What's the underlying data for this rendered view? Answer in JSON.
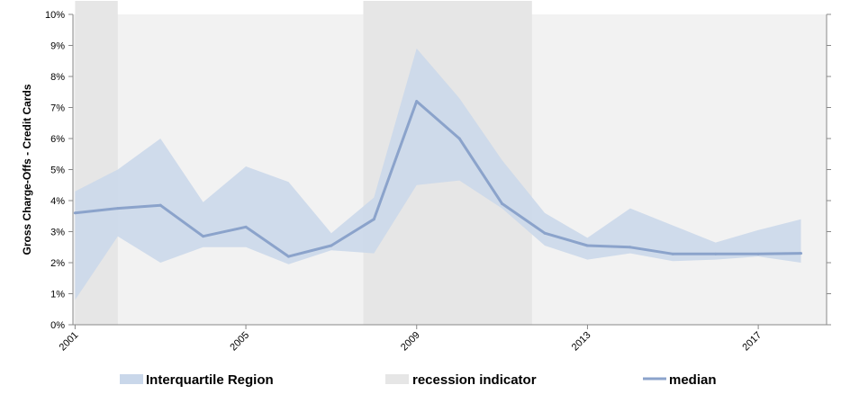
{
  "chart_data": {
    "type": "area",
    "ylabel": "Gross Charge-Offs - Credit Cards",
    "xlabel": "",
    "y_ticks": [
      "0%",
      "1%",
      "2%",
      "3%",
      "4%",
      "5%",
      "6%",
      "7%",
      "8%",
      "9%",
      "10%"
    ],
    "ylim": [
      0,
      10
    ],
    "x_ticks": [
      "2001",
      "2005",
      "2009",
      "2013",
      "2017"
    ],
    "xlim": [
      2000.95,
      2018.6
    ],
    "x": [
      2001,
      2002,
      2003,
      2004,
      2005,
      2006,
      2007,
      2008,
      2009,
      2010,
      2011,
      2012,
      2013,
      2014,
      2015,
      2016,
      2017,
      2018
    ],
    "series": [
      {
        "name": "median",
        "values": [
          3.6,
          3.75,
          3.85,
          2.85,
          3.15,
          2.2,
          2.55,
          3.4,
          7.2,
          6.0,
          3.9,
          2.95,
          2.55,
          2.5,
          2.28,
          2.28,
          2.28,
          2.3
        ]
      },
      {
        "name": "Interquartile Region",
        "upper": [
          4.3,
          5.0,
          6.0,
          3.95,
          5.1,
          4.6,
          2.95,
          4.1,
          8.9,
          7.3,
          5.3,
          3.6,
          2.8,
          3.75,
          3.2,
          2.65,
          3.05,
          3.4
        ],
        "lower": [
          0.8,
          2.85,
          2.0,
          2.5,
          2.5,
          1.95,
          2.4,
          2.3,
          4.5,
          4.65,
          3.75,
          2.55,
          2.1,
          2.3,
          2.05,
          2.1,
          2.2,
          2.0
        ]
      }
    ],
    "recessions": [
      [
        2001.0,
        2002.0
      ],
      [
        2007.75,
        2011.7
      ]
    ],
    "legend": {
      "placement": "bottom",
      "items": [
        {
          "name": "Interquartile Region",
          "color": "#c9d7ea"
        },
        {
          "name": "recession indicator",
          "color": "#e6e6e6"
        },
        {
          "name": "median",
          "color": "#8ba3cb"
        }
      ]
    },
    "colors": {
      "plot_background": "#f2f2f2",
      "band": "#c9d7ea",
      "recession": "#e6e6e6",
      "line": "#8ba3cb"
    }
  }
}
